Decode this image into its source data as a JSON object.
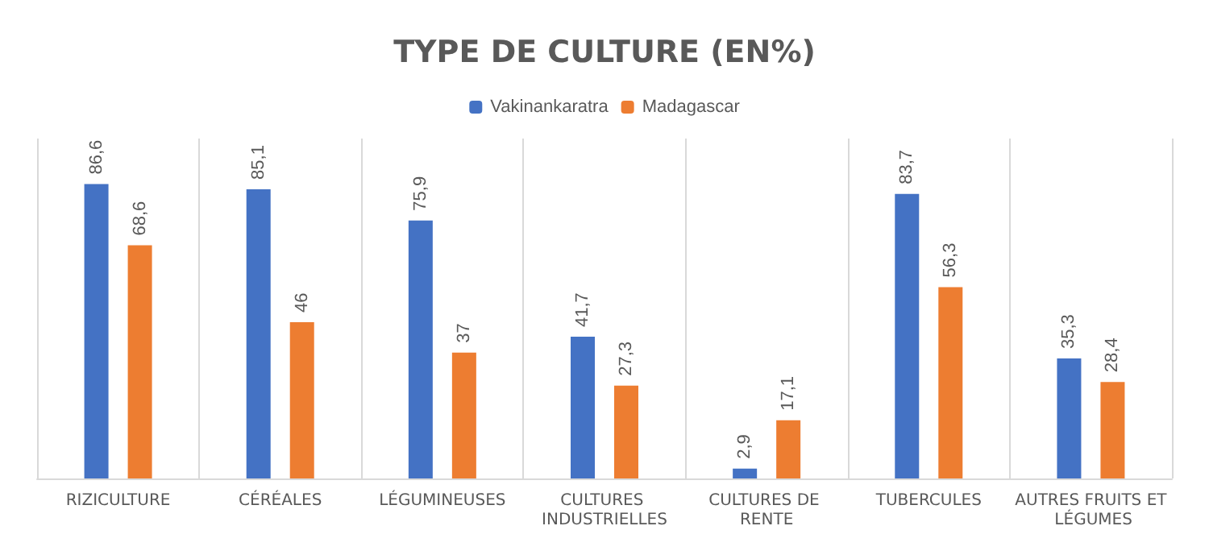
{
  "chart_data": {
    "type": "bar",
    "title": "TYPE DE CULTURE (EN%)",
    "categories": [
      "RIZICULTURE",
      "CÉRÉALES",
      "LÉGUMINEUSES",
      "CULTURES INDUSTRIELLES",
      "CULTURES DE RENTE",
      "TUBERCULES",
      "AUTRES FRUITS ET LÉGUMES"
    ],
    "series": [
      {
        "name": "Vakinankaratra",
        "color": "#4472c4",
        "values": [
          86.6,
          85.1,
          75.9,
          41.7,
          2.9,
          83.7,
          35.3
        ],
        "value_labels": [
          "86,6",
          "85,1",
          "75,9",
          "41,7",
          "2,9",
          "83,7",
          "35,3"
        ]
      },
      {
        "name": "Madagascar",
        "color": "#ed7d31",
        "values": [
          68.6,
          46,
          37,
          27.3,
          17.1,
          56.3,
          28.4
        ],
        "value_labels": [
          "68,6",
          "46",
          "37",
          "27,3",
          "17,1",
          "56,3",
          "28,4"
        ]
      }
    ],
    "legend": "top",
    "grid": "x"
  }
}
